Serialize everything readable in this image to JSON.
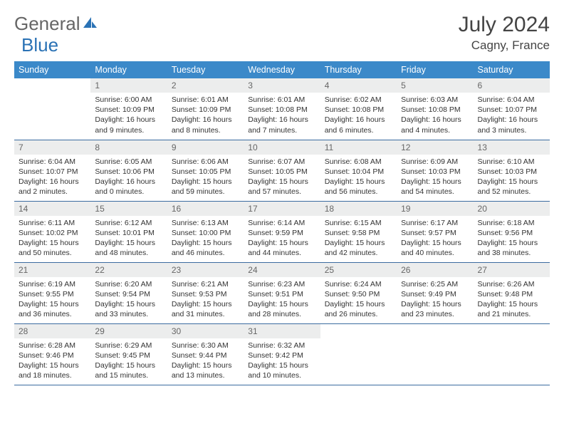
{
  "brand": {
    "word1": "General",
    "word2": "Blue"
  },
  "title": "July 2024",
  "location": "Cagny, France",
  "colors": {
    "header_bg": "#3b89c9",
    "header_text": "#ffffff",
    "daynum_bg": "#eceded",
    "daynum_text": "#666666",
    "cell_border": "#3b6ca0",
    "body_text": "#333333",
    "logo_gray": "#666666",
    "logo_blue": "#2a72b5"
  },
  "fonts": {
    "title_size_pt": 22,
    "location_size_pt": 13,
    "header_size_pt": 9,
    "daynum_size_pt": 9,
    "body_size_pt": 8
  },
  "weekdays": [
    "Sunday",
    "Monday",
    "Tuesday",
    "Wednesday",
    "Thursday",
    "Friday",
    "Saturday"
  ],
  "weeks": [
    [
      {
        "n": "",
        "sr": "",
        "ss": "",
        "dl": ""
      },
      {
        "n": "1",
        "sr": "Sunrise: 6:00 AM",
        "ss": "Sunset: 10:09 PM",
        "dl": "Daylight: 16 hours and 9 minutes."
      },
      {
        "n": "2",
        "sr": "Sunrise: 6:01 AM",
        "ss": "Sunset: 10:09 PM",
        "dl": "Daylight: 16 hours and 8 minutes."
      },
      {
        "n": "3",
        "sr": "Sunrise: 6:01 AM",
        "ss": "Sunset: 10:08 PM",
        "dl": "Daylight: 16 hours and 7 minutes."
      },
      {
        "n": "4",
        "sr": "Sunrise: 6:02 AM",
        "ss": "Sunset: 10:08 PM",
        "dl": "Daylight: 16 hours and 6 minutes."
      },
      {
        "n": "5",
        "sr": "Sunrise: 6:03 AM",
        "ss": "Sunset: 10:08 PM",
        "dl": "Daylight: 16 hours and 4 minutes."
      },
      {
        "n": "6",
        "sr": "Sunrise: 6:04 AM",
        "ss": "Sunset: 10:07 PM",
        "dl": "Daylight: 16 hours and 3 minutes."
      }
    ],
    [
      {
        "n": "7",
        "sr": "Sunrise: 6:04 AM",
        "ss": "Sunset: 10:07 PM",
        "dl": "Daylight: 16 hours and 2 minutes."
      },
      {
        "n": "8",
        "sr": "Sunrise: 6:05 AM",
        "ss": "Sunset: 10:06 PM",
        "dl": "Daylight: 16 hours and 0 minutes."
      },
      {
        "n": "9",
        "sr": "Sunrise: 6:06 AM",
        "ss": "Sunset: 10:05 PM",
        "dl": "Daylight: 15 hours and 59 minutes."
      },
      {
        "n": "10",
        "sr": "Sunrise: 6:07 AM",
        "ss": "Sunset: 10:05 PM",
        "dl": "Daylight: 15 hours and 57 minutes."
      },
      {
        "n": "11",
        "sr": "Sunrise: 6:08 AM",
        "ss": "Sunset: 10:04 PM",
        "dl": "Daylight: 15 hours and 56 minutes."
      },
      {
        "n": "12",
        "sr": "Sunrise: 6:09 AM",
        "ss": "Sunset: 10:03 PM",
        "dl": "Daylight: 15 hours and 54 minutes."
      },
      {
        "n": "13",
        "sr": "Sunrise: 6:10 AM",
        "ss": "Sunset: 10:03 PM",
        "dl": "Daylight: 15 hours and 52 minutes."
      }
    ],
    [
      {
        "n": "14",
        "sr": "Sunrise: 6:11 AM",
        "ss": "Sunset: 10:02 PM",
        "dl": "Daylight: 15 hours and 50 minutes."
      },
      {
        "n": "15",
        "sr": "Sunrise: 6:12 AM",
        "ss": "Sunset: 10:01 PM",
        "dl": "Daylight: 15 hours and 48 minutes."
      },
      {
        "n": "16",
        "sr": "Sunrise: 6:13 AM",
        "ss": "Sunset: 10:00 PM",
        "dl": "Daylight: 15 hours and 46 minutes."
      },
      {
        "n": "17",
        "sr": "Sunrise: 6:14 AM",
        "ss": "Sunset: 9:59 PM",
        "dl": "Daylight: 15 hours and 44 minutes."
      },
      {
        "n": "18",
        "sr": "Sunrise: 6:15 AM",
        "ss": "Sunset: 9:58 PM",
        "dl": "Daylight: 15 hours and 42 minutes."
      },
      {
        "n": "19",
        "sr": "Sunrise: 6:17 AM",
        "ss": "Sunset: 9:57 PM",
        "dl": "Daylight: 15 hours and 40 minutes."
      },
      {
        "n": "20",
        "sr": "Sunrise: 6:18 AM",
        "ss": "Sunset: 9:56 PM",
        "dl": "Daylight: 15 hours and 38 minutes."
      }
    ],
    [
      {
        "n": "21",
        "sr": "Sunrise: 6:19 AM",
        "ss": "Sunset: 9:55 PM",
        "dl": "Daylight: 15 hours and 36 minutes."
      },
      {
        "n": "22",
        "sr": "Sunrise: 6:20 AM",
        "ss": "Sunset: 9:54 PM",
        "dl": "Daylight: 15 hours and 33 minutes."
      },
      {
        "n": "23",
        "sr": "Sunrise: 6:21 AM",
        "ss": "Sunset: 9:53 PM",
        "dl": "Daylight: 15 hours and 31 minutes."
      },
      {
        "n": "24",
        "sr": "Sunrise: 6:23 AM",
        "ss": "Sunset: 9:51 PM",
        "dl": "Daylight: 15 hours and 28 minutes."
      },
      {
        "n": "25",
        "sr": "Sunrise: 6:24 AM",
        "ss": "Sunset: 9:50 PM",
        "dl": "Daylight: 15 hours and 26 minutes."
      },
      {
        "n": "26",
        "sr": "Sunrise: 6:25 AM",
        "ss": "Sunset: 9:49 PM",
        "dl": "Daylight: 15 hours and 23 minutes."
      },
      {
        "n": "27",
        "sr": "Sunrise: 6:26 AM",
        "ss": "Sunset: 9:48 PM",
        "dl": "Daylight: 15 hours and 21 minutes."
      }
    ],
    [
      {
        "n": "28",
        "sr": "Sunrise: 6:28 AM",
        "ss": "Sunset: 9:46 PM",
        "dl": "Daylight: 15 hours and 18 minutes."
      },
      {
        "n": "29",
        "sr": "Sunrise: 6:29 AM",
        "ss": "Sunset: 9:45 PM",
        "dl": "Daylight: 15 hours and 15 minutes."
      },
      {
        "n": "30",
        "sr": "Sunrise: 6:30 AM",
        "ss": "Sunset: 9:44 PM",
        "dl": "Daylight: 15 hours and 13 minutes."
      },
      {
        "n": "31",
        "sr": "Sunrise: 6:32 AM",
        "ss": "Sunset: 9:42 PM",
        "dl": "Daylight: 15 hours and 10 minutes."
      },
      {
        "n": "",
        "sr": "",
        "ss": "",
        "dl": ""
      },
      {
        "n": "",
        "sr": "",
        "ss": "",
        "dl": ""
      },
      {
        "n": "",
        "sr": "",
        "ss": "",
        "dl": ""
      }
    ]
  ]
}
